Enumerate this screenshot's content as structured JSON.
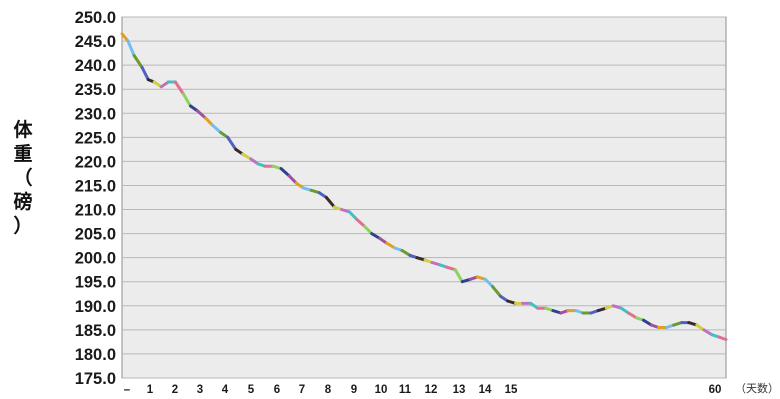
{
  "chart_data": {
    "type": "line",
    "title": "",
    "xlabel": "（天数）",
    "ylabel_chars": [
      "体",
      "重",
      "（",
      "磅",
      "）"
    ],
    "ylim": [
      175.0,
      250.0
    ],
    "yticks": [
      "250.0",
      "245.0",
      "240.0",
      "235.0",
      "230.0",
      "225.0",
      "220.0",
      "215.0",
      "210.0",
      "205.0",
      "200.0",
      "195.0",
      "190.0",
      "185.0",
      "180.0",
      "175.0"
    ],
    "xlim": [
      0,
      60
    ],
    "xticks": [
      {
        "x": 0,
        "label": "–"
      },
      {
        "x": 1,
        "label": "1"
      },
      {
        "x": 2,
        "label": "2"
      },
      {
        "x": 3,
        "label": "3"
      },
      {
        "x": 4,
        "label": "4"
      },
      {
        "x": 5,
        "label": "5"
      },
      {
        "x": 6,
        "label": "6"
      },
      {
        "x": 7,
        "label": "7"
      },
      {
        "x": 8,
        "label": "8"
      },
      {
        "x": 9,
        "label": "9"
      },
      {
        "x": 10,
        "label": "10"
      },
      {
        "x": 11,
        "label": "11"
      },
      {
        "x": 12,
        "label": "12"
      },
      {
        "x": 13,
        "label": "13"
      },
      {
        "x": 14,
        "label": "14"
      },
      {
        "x": 15,
        "label": "15"
      },
      {
        "x": 60,
        "label": "60"
      }
    ],
    "grid": true,
    "legend": "none",
    "series": [
      {
        "x": [
          0,
          0.6,
          1.2,
          2,
          2.6,
          3.2,
          3.9,
          4.6,
          5.3,
          6.1,
          6.8,
          7.5,
          8.3,
          9.0,
          9.8,
          10.5,
          11.3,
          12.0,
          12.8,
          13.5,
          14.2,
          15.0,
          15.8,
          16.6,
          17.3,
          18.0,
          18.8,
          19.6,
          20.3,
          21.1,
          21.8,
          22.6,
          23.3,
          24.1,
          24.8,
          25.6,
          26.3,
          27.1,
          27.8,
          28.6,
          29.3,
          30.1,
          30.8,
          31.6,
          32.3,
          33.1,
          33.8,
          34.6,
          35.3,
          36.1,
          36.8,
          37.6,
          38.3,
          39.1,
          39.8,
          40.6,
          41.3,
          42.1,
          42.8,
          43.6,
          44.3,
          45.1,
          45.8,
          46.6,
          47.3,
          48.1,
          48.8,
          49.6,
          50.3,
          51.1,
          51.8,
          52.6,
          53.3,
          54.1,
          54.8,
          55.6,
          56.3,
          57.1,
          57.8,
          58.6,
          59.3,
          60
        ],
        "y": [
          246.5,
          245.0,
          242.0,
          239.5,
          237.0,
          236.5,
          235.5,
          236.5,
          236.5,
          234.0,
          231.5,
          230.5,
          229.0,
          227.5,
          226.0,
          225.0,
          222.5,
          221.5,
          220.5,
          219.5,
          219.0,
          219.0,
          218.5,
          217.0,
          215.5,
          214.5,
          214.0,
          213.5,
          212.5,
          210.5,
          210.0,
          209.5,
          208.0,
          206.5,
          205.0,
          204.0,
          203.0,
          202.0,
          201.5,
          200.5,
          200.0,
          199.5,
          199.0,
          198.5,
          198.0,
          197.5,
          195.0,
          195.5,
          196.0,
          195.5,
          194.0,
          192.0,
          191.0,
          190.5,
          190.5,
          190.5,
          189.5,
          189.5,
          189.0,
          188.5,
          189.0,
          189.0,
          188.5,
          188.5,
          189.0,
          189.5,
          190.0,
          189.5,
          188.5,
          187.5,
          187.0,
          186.0,
          185.5,
          185.5,
          186.0,
          186.5,
          186.5,
          186.0,
          185.0,
          184.0,
          183.5,
          183.0
        ]
      }
    ]
  },
  "colors": {
    "background": "#ffffff",
    "plot_background": "#ececec",
    "gridline": "#b8b8b8",
    "axis": "#8c8c8c",
    "segment_palette": [
      "#e0a020",
      "#6fc0f0",
      "#6a9a30",
      "#5060c0",
      "#3a2a2a",
      "#d0d040",
      "#c070c0",
      "#40c0c0",
      "#e07090",
      "#90d060",
      "#304090",
      "#a050a0"
    ]
  }
}
